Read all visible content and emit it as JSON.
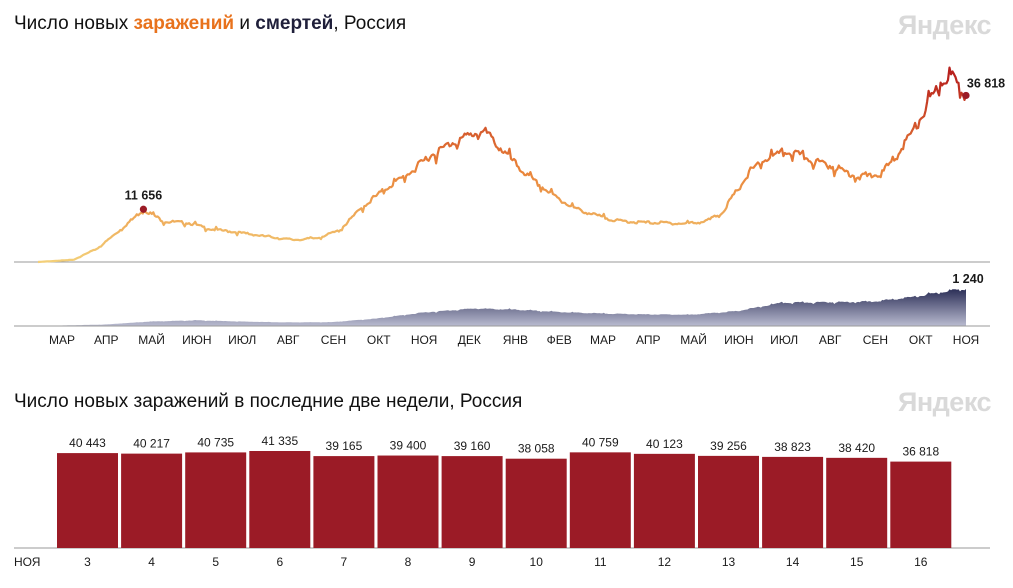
{
  "header1": {
    "prefix": "Число новых ",
    "infections_word": "заражений",
    "middle": " и ",
    "deaths_word": "смертей",
    "suffix": ", Россия",
    "watermark": "Яндекс"
  },
  "header2": {
    "title": "Число новых заражений в последние две недели, Россия",
    "watermark": "Яндекс"
  },
  "colors": {
    "infections_low": "#f1c46a",
    "infections_high": "#c0261f",
    "deaths_fill": "#3a3d66",
    "bars": "#9b1b26",
    "weekend_label": "#d8432b"
  },
  "chart_data": [
    {
      "type": "line",
      "name": "infections",
      "x_ticks": [
        "МАР",
        "АПР",
        "МАЙ",
        "ИЮН",
        "ИЮЛ",
        "АВГ",
        "СЕН",
        "ОКТ",
        "НОЯ",
        "ДЕК",
        "ЯНВ",
        "ФЕВ",
        "МАР",
        "АПР",
        "МАЙ",
        "ИЮН",
        "ИЮЛ",
        "АВГ",
        "СЕН",
        "ОКТ",
        "НОЯ"
      ],
      "points": [
        [
          "2020-03-01",
          0
        ],
        [
          "2020-03-25",
          500
        ],
        [
          "2020-04-10",
          3000
        ],
        [
          "2020-04-25",
          7000
        ],
        [
          "2020-05-11",
          11656
        ],
        [
          "2020-05-25",
          9000
        ],
        [
          "2020-06-10",
          8700
        ],
        [
          "2020-06-25",
          7300
        ],
        [
          "2020-07-15",
          6500
        ],
        [
          "2020-08-01",
          5700
        ],
        [
          "2020-08-20",
          4900
        ],
        [
          "2020-09-05",
          5300
        ],
        [
          "2020-09-20",
          7000
        ],
        [
          "2020-10-05",
          12000
        ],
        [
          "2020-10-20",
          16000
        ],
        [
          "2020-11-05",
          19500
        ],
        [
          "2020-11-20",
          23500
        ],
        [
          "2020-12-05",
          26500
        ],
        [
          "2020-12-20",
          28500
        ],
        [
          "2020-12-27",
          29000
        ],
        [
          "2021-01-10",
          24000
        ],
        [
          "2021-01-25",
          19000
        ],
        [
          "2021-02-10",
          15000
        ],
        [
          "2021-02-25",
          12000
        ],
        [
          "2021-03-10",
          10500
        ],
        [
          "2021-03-25",
          9200
        ],
        [
          "2021-04-10",
          8800
        ],
        [
          "2021-04-25",
          8700
        ],
        [
          "2021-05-10",
          8500
        ],
        [
          "2021-05-25",
          9000
        ],
        [
          "2021-06-05",
          11000
        ],
        [
          "2021-06-15",
          16000
        ],
        [
          "2021-06-25",
          20500
        ],
        [
          "2021-07-05",
          23000
        ],
        [
          "2021-07-20",
          24500
        ],
        [
          "2021-08-05",
          22500
        ],
        [
          "2021-08-20",
          21000
        ],
        [
          "2021-09-05",
          18800
        ],
        [
          "2021-09-20",
          19500
        ],
        [
          "2021-10-01",
          24000
        ],
        [
          "2021-10-15",
          31000
        ],
        [
          "2021-10-30",
          40000
        ],
        [
          "2021-11-06",
          41335
        ],
        [
          "2021-11-16",
          36818
        ]
      ],
      "annotations": [
        "11 656",
        "36 818"
      ]
    },
    {
      "type": "area",
      "name": "deaths",
      "points": [
        [
          "2020-03-01",
          0
        ],
        [
          "2020-04-15",
          50
        ],
        [
          "2020-05-15",
          150
        ],
        [
          "2020-06-15",
          190
        ],
        [
          "2020-07-15",
          150
        ],
        [
          "2020-08-15",
          120
        ],
        [
          "2020-09-15",
          130
        ],
        [
          "2020-10-15",
          250
        ],
        [
          "2020-11-15",
          450
        ],
        [
          "2020-12-20",
          590
        ],
        [
          "2021-01-15",
          550
        ],
        [
          "2021-02-15",
          470
        ],
        [
          "2021-03-15",
          420
        ],
        [
          "2021-04-15",
          390
        ],
        [
          "2021-05-15",
          380
        ],
        [
          "2021-06-15",
          500
        ],
        [
          "2021-07-15",
          780
        ],
        [
          "2021-08-15",
          800
        ],
        [
          "2021-09-15",
          820
        ],
        [
          "2021-10-15",
          1000
        ],
        [
          "2021-11-06",
          1195
        ],
        [
          "2021-11-16",
          1240
        ]
      ],
      "annotation": "1 240"
    },
    {
      "type": "bar",
      "name": "last_two_weeks",
      "month_label": "НОЯ",
      "categories": [
        "3",
        "4",
        "5",
        "6",
        "7",
        "8",
        "9",
        "10",
        "11",
        "12",
        "13",
        "14",
        "15",
        "16"
      ],
      "values": [
        40443,
        40217,
        40735,
        41335,
        39165,
        39400,
        39160,
        38058,
        40759,
        40123,
        39256,
        38823,
        38420,
        36818
      ],
      "value_labels": [
        "40 443",
        "40 217",
        "40 735",
        "41 335",
        "39 165",
        "39 400",
        "39 160",
        "38 058",
        "40 759",
        "40 123",
        "39 256",
        "38 823",
        "38 420",
        "36 818"
      ],
      "weekend": [
        false,
        false,
        false,
        true,
        true,
        false,
        false,
        false,
        false,
        false,
        true,
        true,
        false,
        false
      ]
    }
  ]
}
